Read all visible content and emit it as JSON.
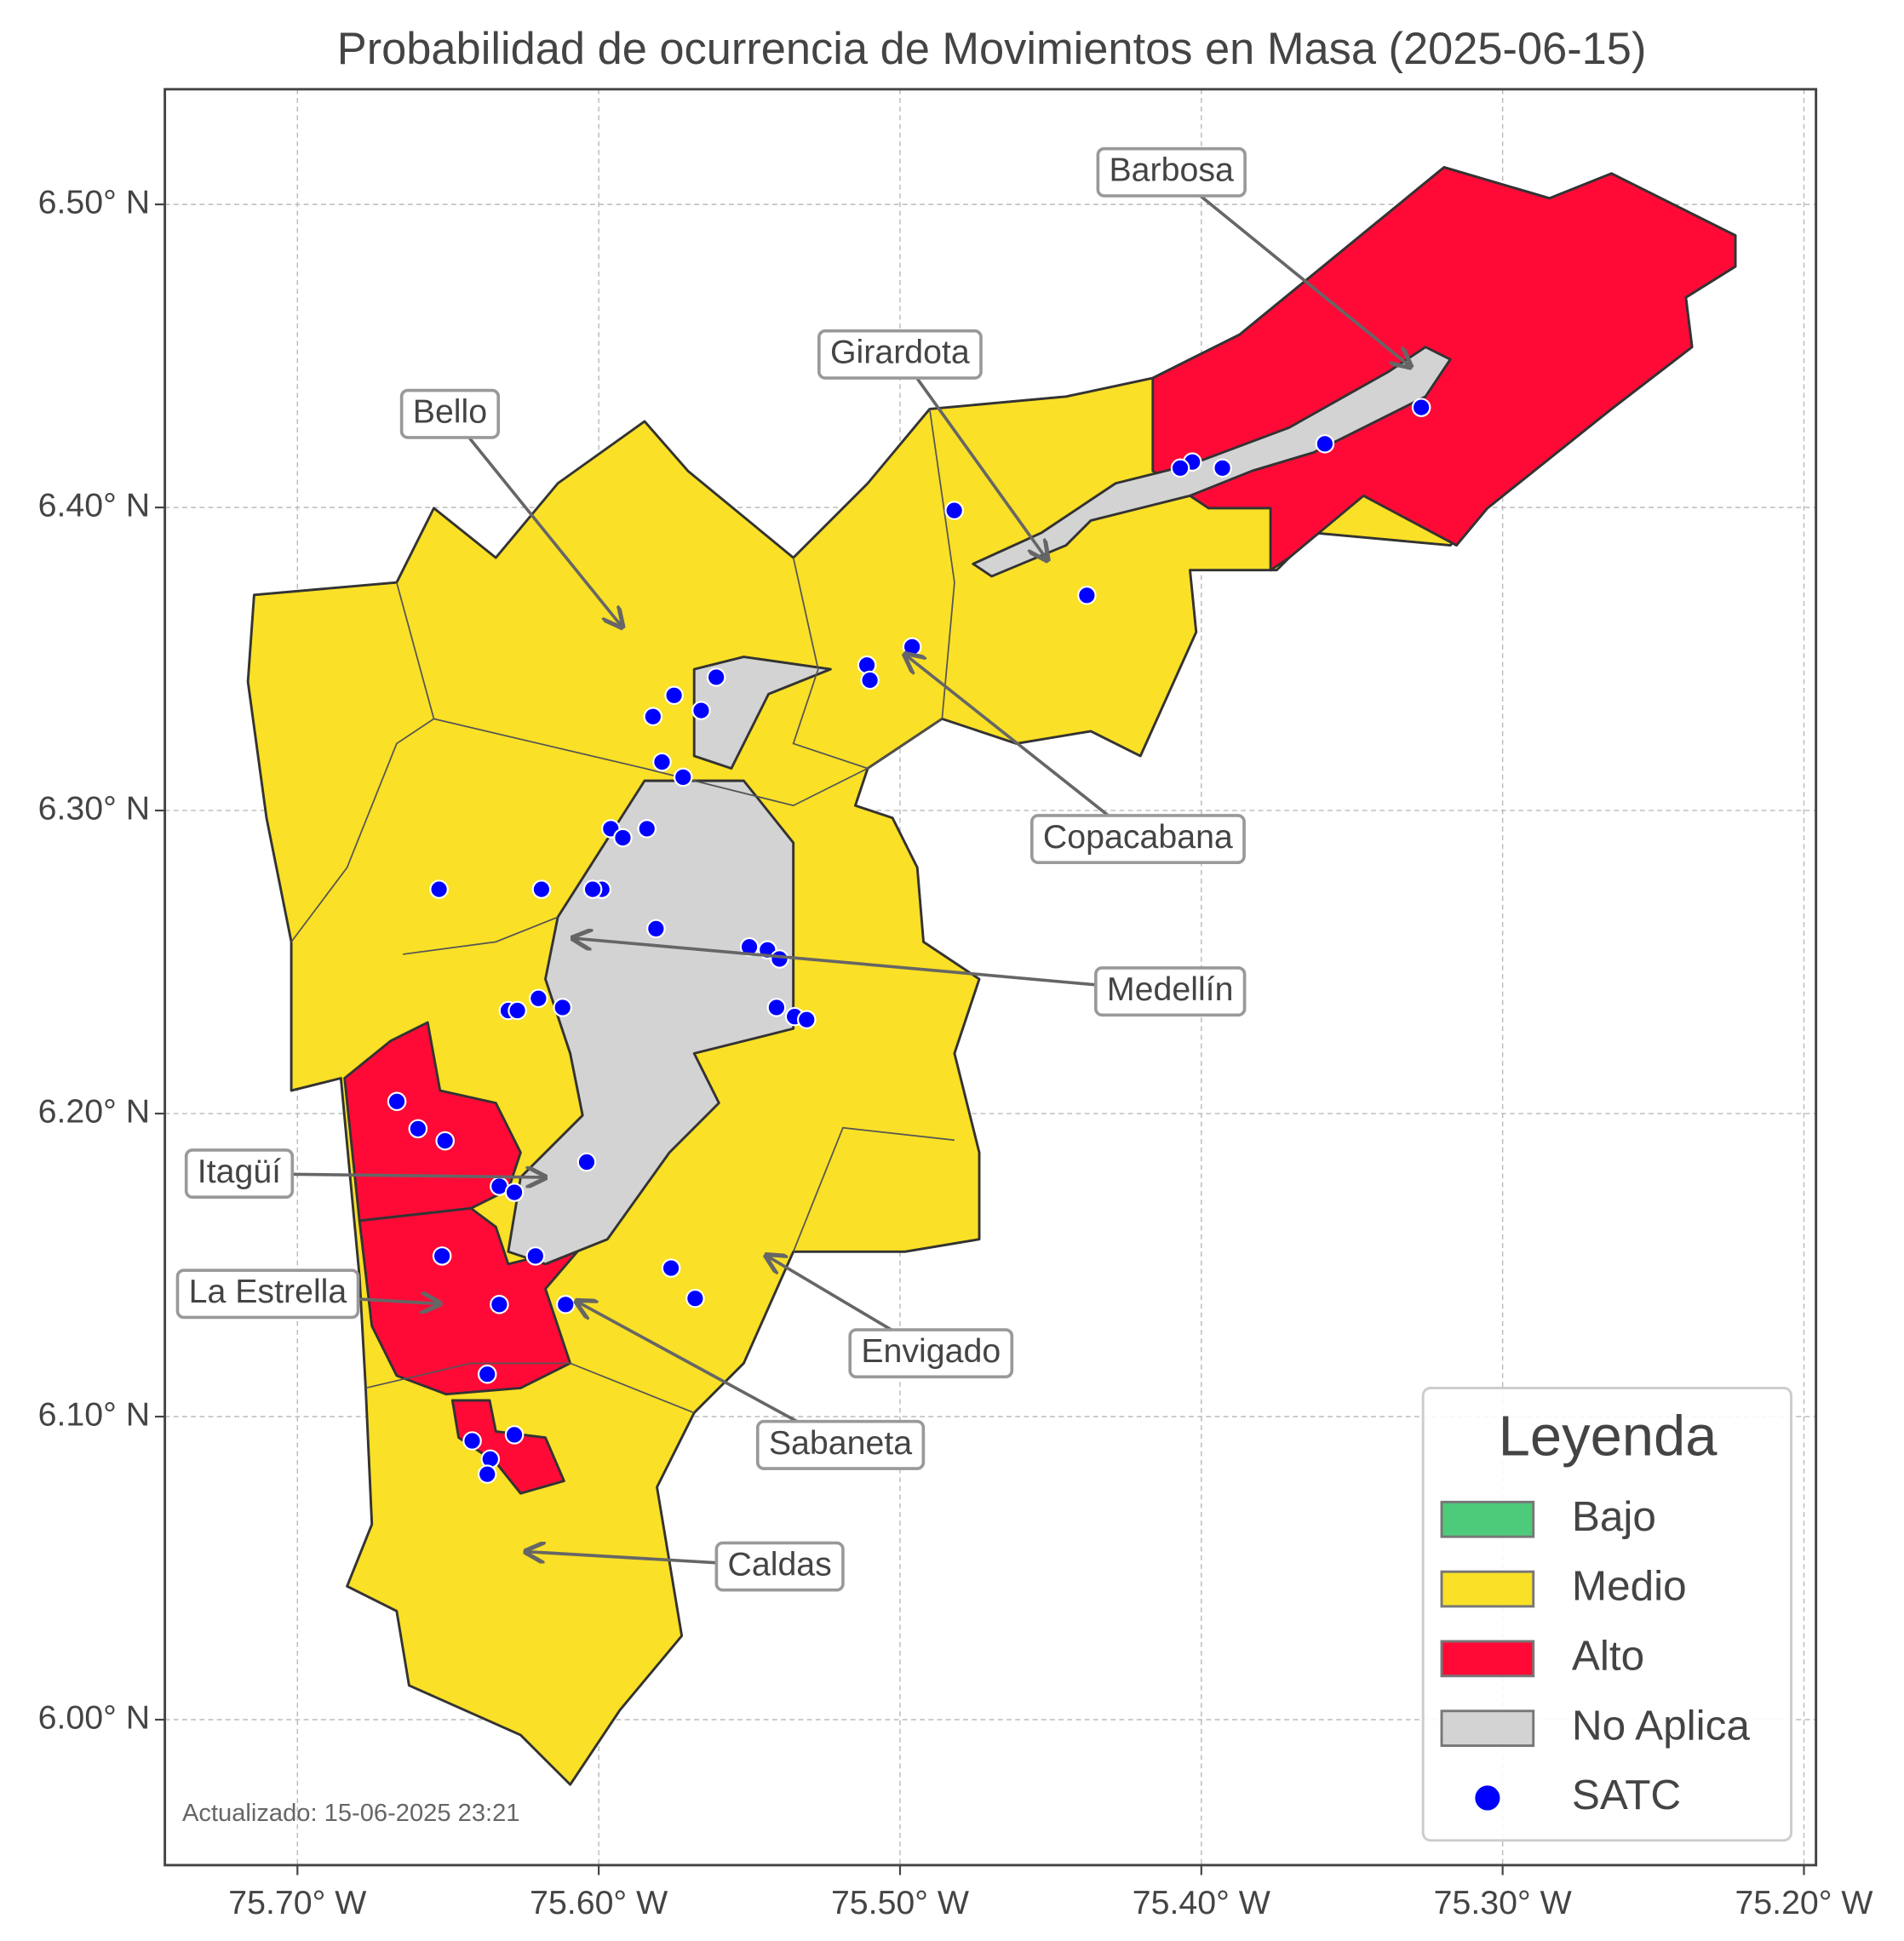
{
  "title": "Probabilidad de ocurrencia de Movimientos en Masa (2025-06-15)",
  "map": {
    "xlim": [
      -75.744,
      -75.196
    ],
    "ylim": [
      5.952,
      6.538
    ],
    "grid": true,
    "xticks": [
      {
        "value": -75.7,
        "label": "75.70° W"
      },
      {
        "value": -75.6,
        "label": "75.60° W"
      },
      {
        "value": -75.5,
        "label": "75.50° W"
      },
      {
        "value": -75.4,
        "label": "75.40° W"
      },
      {
        "value": -75.3,
        "label": "75.30° W"
      },
      {
        "value": -75.2,
        "label": "75.20° W"
      }
    ],
    "yticks": [
      {
        "value": 6.0,
        "label": "6.00° N"
      },
      {
        "value": 6.1,
        "label": "6.10° N"
      },
      {
        "value": 6.2,
        "label": "6.20° N"
      },
      {
        "value": 6.3,
        "label": "6.30° N"
      },
      {
        "value": 6.4,
        "label": "6.40° N"
      },
      {
        "value": 6.5,
        "label": "6.50° N"
      }
    ]
  },
  "annotations": [
    "Barbosa",
    "Girardota",
    "Bello",
    "Copacabana",
    "Medellín",
    "Itagüí",
    "La Estrella",
    "Envigado",
    "Sabaneta",
    "Caldas"
  ],
  "legend": {
    "title": "Leyenda",
    "items": [
      {
        "name": "Bajo",
        "color": "#4dcb7a"
      },
      {
        "name": "Medio",
        "color": "#fae026"
      },
      {
        "name": "Alto",
        "color": "#ff0a37"
      },
      {
        "name": "No Aplica",
        "color": "#d3d3d3"
      },
      {
        "name": "SATC",
        "color": "#0000ff"
      }
    ]
  },
  "satc_points": {
    "lon": [
      -75.327,
      -75.359,
      -75.393,
      -75.403,
      -75.407,
      -75.482,
      -75.438,
      -75.496,
      -75.511,
      -75.51,
      -75.561,
      -75.575,
      -75.566,
      -75.582,
      -75.579,
      -75.572,
      -75.596,
      -75.592,
      -75.584,
      -75.599,
      -75.602,
      -75.619,
      -75.653,
      -75.581,
      -75.55,
      -75.544,
      -75.54,
      -75.541,
      -75.535,
      -75.531,
      -75.63,
      -75.627,
      -75.62,
      -75.612,
      -75.667,
      -75.66,
      -75.651,
      -75.604,
      -75.633,
      -75.628,
      -75.652,
      -75.621,
      -75.576,
      -75.568,
      -75.633,
      -75.611,
      -75.637,
      -75.642,
      -75.628,
      -75.636,
      -75.637
    ],
    "lat": [
      6.433,
      6.421,
      6.413,
      6.415,
      6.413,
      6.399,
      6.371,
      6.354,
      6.348,
      6.343,
      6.344,
      6.338,
      6.333,
      6.331,
      6.316,
      6.311,
      6.294,
      6.291,
      6.294,
      6.274,
      6.274,
      6.274,
      6.274,
      6.261,
      6.255,
      6.254,
      6.251,
      6.235,
      6.232,
      6.231,
      6.234,
      6.234,
      6.238,
      6.235,
      6.204,
      6.195,
      6.191,
      6.184,
      6.176,
      6.174,
      6.153,
      6.153,
      6.149,
      6.139,
      6.137,
      6.137,
      6.114,
      6.092,
      6.094,
      6.086,
      6.081
    ]
  },
  "footnote": "Actualizado: 15-06-2025 23:21"
}
